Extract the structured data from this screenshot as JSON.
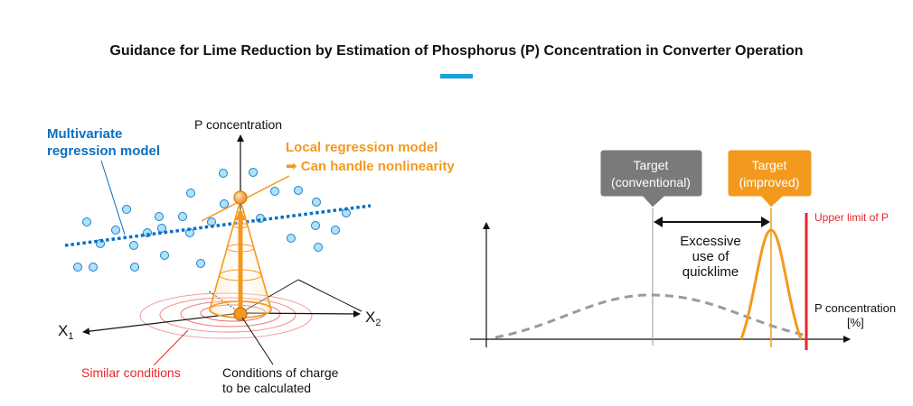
{
  "title": "Guidance for Lime Reduction by Estimation of Phosphorus (P) Concentration in Converter Operation",
  "colors": {
    "accent_bar": "#1aa0dc",
    "blue": "#0a6fc0",
    "orange": "#f39a1e",
    "red": "#e8262b",
    "gray_box": "#7a7a7a",
    "gray_curve": "#9a9a9a",
    "point_fill": "#aee1fb",
    "point_stroke": "#1d7fc5"
  },
  "left_diagram": {
    "p_axis_label": "P concentration",
    "multivariate_line1": "Multivariate",
    "multivariate_line2": "regression model",
    "local_line1": "Local regression model",
    "local_line2": "➡ Can handle nonlinearity",
    "x1_label": "X",
    "x1_sub": "1",
    "x2_label": "X",
    "x2_sub": "2",
    "similar_conditions": "Similar conditions",
    "charge_line1": "Conditions of charge",
    "charge_line2": "to be calculated"
  },
  "right_diagram": {
    "target_conv_line1": "Target",
    "target_conv_line2": "(conventional)",
    "target_impr_line1": "Target",
    "target_impr_line2": "(improved)",
    "upper_limit": "Upper limit of P",
    "excessive_line1": "Excessive",
    "excessive_line2": "use of",
    "excessive_line3": "quicklime",
    "p_conc_label": "P concentration",
    "p_conc_unit": "[%]"
  }
}
